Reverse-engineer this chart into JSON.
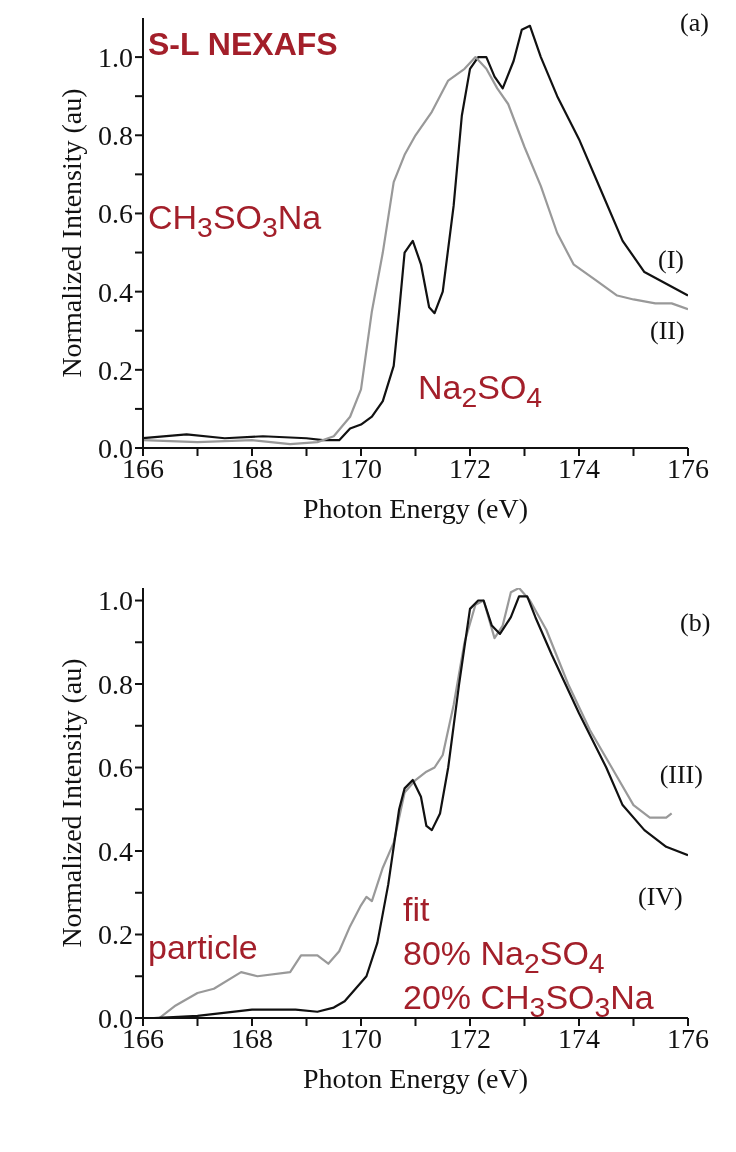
{
  "chart_data": [
    {
      "type": "line",
      "title": "S-L NEXAFS",
      "xlabel": "Photon Energy (eV)",
      "ylabel": "Normalized Intensity (au)",
      "xlim": [
        166,
        176
      ],
      "ylim": [
        0,
        1.1
      ],
      "xticks": [
        166,
        {
          "value": 167,
          "label": null
        },
        168,
        {
          "value": 169,
          "label": null
        },
        170,
        {
          "value": 171,
          "label": null
        },
        172,
        {
          "value": 173,
          "label": null
        },
        174,
        {
          "value": 175,
          "label": null
        },
        176
      ],
      "yticks": [
        {
          "value": 0,
          "label": "0.0"
        },
        {
          "value": 0.1,
          "label": null
        },
        {
          "value": 0.2,
          "label": "0.2"
        },
        {
          "value": 0.3,
          "label": null
        },
        {
          "value": 0.4,
          "label": "0.4"
        },
        {
          "value": 0.5,
          "label": null
        },
        {
          "value": 0.6,
          "label": "0.6"
        },
        {
          "value": 0.7,
          "label": null
        },
        {
          "value": 0.8,
          "label": "0.8"
        },
        {
          "value": 0.9,
          "label": null
        },
        {
          "value": 1.0,
          "label": "1.0"
        }
      ],
      "line_style": "solid",
      "marker": "none",
      "annotations": [
        "(a)",
        "CH$_{3}$SO$_{3}$Na",
        "Na$_{2}$SO$_{4}$"
      ],
      "series": [
        {
          "name": "(I)",
          "color": "#111111",
          "x": [
            166,
            166.8,
            167.5,
            168.2,
            169,
            169.3,
            169.6,
            169.8,
            170.0,
            170.2,
            170.4,
            170.6,
            170.7,
            170.8,
            170.95,
            171.1,
            171.25,
            171.35,
            171.5,
            171.7,
            171.85,
            172.0,
            172.15,
            172.3,
            172.45,
            172.6,
            172.8,
            172.95,
            173.1,
            173.3,
            173.6,
            174.0,
            174.4,
            174.8,
            175.2,
            175.6,
            176.0
          ],
          "values": [
            0.025,
            0.035,
            0.025,
            0.03,
            0.025,
            0.02,
            0.02,
            0.05,
            0.06,
            0.08,
            0.12,
            0.21,
            0.35,
            0.5,
            0.53,
            0.47,
            0.36,
            0.345,
            0.4,
            0.62,
            0.85,
            0.97,
            1.0,
            1.0,
            0.95,
            0.92,
            0.99,
            1.07,
            1.08,
            1.0,
            0.9,
            0.79,
            0.66,
            0.53,
            0.45,
            0.42,
            0.39
          ]
        },
        {
          "name": "(II)",
          "color": "#999999",
          "x": [
            166,
            167,
            168,
            168.7,
            169.2,
            169.5,
            169.8,
            170.0,
            170.2,
            170.4,
            170.6,
            170.8,
            171.0,
            171.3,
            171.6,
            171.9,
            172.1,
            172.3,
            172.5,
            172.7,
            173.0,
            173.3,
            173.6,
            173.9,
            174.3,
            174.7,
            175.0,
            175.4,
            175.7,
            176.0
          ],
          "values": [
            0.02,
            0.015,
            0.02,
            0.01,
            0.015,
            0.03,
            0.08,
            0.15,
            0.35,
            0.5,
            0.68,
            0.75,
            0.8,
            0.86,
            0.94,
            0.97,
            1.0,
            0.97,
            0.92,
            0.88,
            0.77,
            0.67,
            0.55,
            0.47,
            0.43,
            0.39,
            0.38,
            0.37,
            0.37,
            0.355
          ]
        }
      ]
    },
    {
      "type": "line",
      "xlabel": "Photon Energy (eV)",
      "ylabel": "Normalized Intensity (au)",
      "xlim": [
        166,
        176
      ],
      "ylim": [
        0,
        1.03
      ],
      "xticks": [
        166,
        {
          "value": 167,
          "label": null
        },
        168,
        {
          "value": 169,
          "label": null
        },
        170,
        {
          "value": 171,
          "label": null
        },
        172,
        {
          "value": 173,
          "label": null
        },
        174,
        {
          "value": 175,
          "label": null
        },
        176
      ],
      "yticks": [
        {
          "value": 0,
          "label": "0.0"
        },
        {
          "value": 0.1,
          "label": null
        },
        {
          "value": 0.2,
          "label": "0.2"
        },
        {
          "value": 0.3,
          "label": null
        },
        {
          "value": 0.4,
          "label": "0.4"
        },
        {
          "value": 0.5,
          "label": null
        },
        {
          "value": 0.6,
          "label": "0.6"
        },
        {
          "value": 0.7,
          "label": null
        },
        {
          "value": 0.8,
          "label": "0.8"
        },
        {
          "value": 0.9,
          "label": null
        },
        {
          "value": 1.0,
          "label": "1.0"
        }
      ],
      "line_style": "solid",
      "marker": "none",
      "annotations": [
        "(b)",
        "particle",
        "fit",
        "80% Na$_{2}$SO$_{4}$",
        "20% CH$_{3}$SO$_{3}$Na"
      ],
      "series": [
        {
          "name": "(III)",
          "color": "#999999",
          "x": [
            166.3,
            166.6,
            167.0,
            167.3,
            167.8,
            168.1,
            168.7,
            168.9,
            169.2,
            169.4,
            169.6,
            169.8,
            170.0,
            170.1,
            170.2,
            170.4,
            170.6,
            170.8,
            171.0,
            171.2,
            171.35,
            171.5,
            171.7,
            171.9,
            172.1,
            172.25,
            172.45,
            172.6,
            172.75,
            172.9,
            173.1,
            173.4,
            173.8,
            174.2,
            174.6,
            175.0,
            175.3,
            175.6,
            175.7
          ],
          "values": [
            0,
            0.03,
            0.06,
            0.07,
            0.11,
            0.1,
            0.11,
            0.15,
            0.15,
            0.13,
            0.16,
            0.22,
            0.27,
            0.29,
            0.28,
            0.36,
            0.42,
            0.54,
            0.57,
            0.59,
            0.6,
            0.63,
            0.75,
            0.9,
            0.99,
            1.0,
            0.91,
            0.94,
            1.02,
            1.03,
            1.0,
            0.93,
            0.8,
            0.69,
            0.6,
            0.51,
            0.48,
            0.48,
            0.49
          ]
        },
        {
          "name": "(IV)",
          "color": "#111111",
          "x": [
            166.2,
            167,
            168,
            168.8,
            169.2,
            169.5,
            169.7,
            169.9,
            170.1,
            170.3,
            170.5,
            170.7,
            170.8,
            170.95,
            171.1,
            171.2,
            171.3,
            171.45,
            171.6,
            171.8,
            172.0,
            172.15,
            172.25,
            172.4,
            172.55,
            172.75,
            172.9,
            173.05,
            173.2,
            173.5,
            174.0,
            174.5,
            174.8,
            175.2,
            175.6,
            176.0
          ],
          "values": [
            0,
            0.005,
            0.02,
            0.02,
            0.015,
            0.025,
            0.04,
            0.07,
            0.1,
            0.18,
            0.32,
            0.5,
            0.55,
            0.57,
            0.53,
            0.46,
            0.45,
            0.49,
            0.6,
            0.8,
            0.98,
            1.0,
            1.0,
            0.94,
            0.92,
            0.96,
            1.01,
            1.01,
            0.96,
            0.87,
            0.73,
            0.6,
            0.51,
            0.45,
            0.41,
            0.39
          ]
        }
      ]
    }
  ]
}
